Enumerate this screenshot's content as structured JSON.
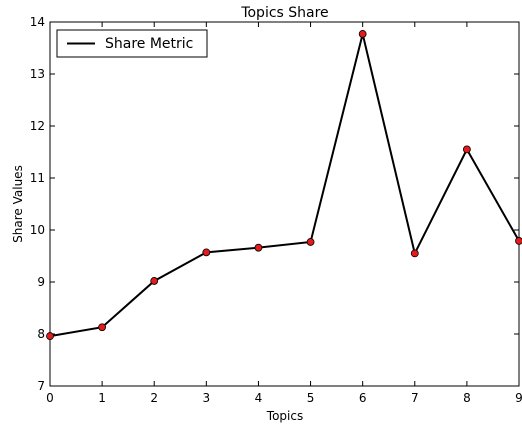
{
  "chart_data": {
    "type": "line",
    "title": "Topics Share",
    "xlabel": "Topics",
    "ylabel": "Share Values",
    "x": [
      0,
      1,
      2,
      3,
      4,
      5,
      6,
      7,
      8,
      9
    ],
    "xlim": [
      0,
      9
    ],
    "ylim": [
      7,
      14
    ],
    "xticks": [
      "0",
      "1",
      "2",
      "3",
      "4",
      "5",
      "6",
      "7",
      "8",
      "9"
    ],
    "yticks": [
      "7",
      "8",
      "9",
      "10",
      "11",
      "12",
      "13",
      "14"
    ],
    "grid": false,
    "legend_position": "top-left",
    "series": [
      {
        "name": "Share Metric",
        "values": [
          7.96,
          8.13,
          9.02,
          9.57,
          9.66,
          9.77,
          13.77,
          9.55,
          11.55,
          9.79
        ],
        "line_color": "#000000",
        "marker_color": "#e41a1c"
      }
    ]
  }
}
